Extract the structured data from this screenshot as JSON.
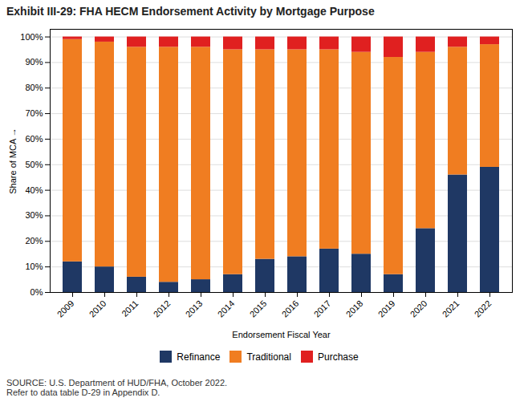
{
  "chart_data": {
    "type": "bar",
    "stacked": true,
    "title": "Exhibit III-29: FHA HECM Endorsement Activity by Mortgage Purpose",
    "xlabel": "Endorsement Fiscal Year",
    "ylabel": "Share of MCA",
    "caption": "SOURCE: U.S. Department of HUD/FHA, October 2022.\nRefer to data table D-29 in Appendix D.",
    "categories": [
      "2009",
      "2010",
      "2011",
      "2012",
      "2013",
      "2014",
      "2015",
      "2016",
      "2017",
      "2018",
      "2019",
      "2020",
      "2021",
      "2022"
    ],
    "series": [
      {
        "name": "Refinance",
        "color": "#1f3864",
        "values": [
          12,
          10,
          6,
          4,
          5,
          7,
          13,
          14,
          17,
          15,
          7,
          25,
          46,
          49
        ]
      },
      {
        "name": "Traditional",
        "color": "#f07d21",
        "values": [
          87,
          88,
          90,
          92,
          91,
          88,
          82,
          81,
          78,
          79,
          85,
          69,
          50,
          48
        ]
      },
      {
        "name": "Purchase",
        "color": "#e02020",
        "values": [
          1,
          2,
          4,
          4,
          4,
          5,
          5,
          5,
          5,
          6,
          8,
          6,
          4,
          3
        ]
      }
    ],
    "ylim": [
      0,
      103
    ],
    "yticks": [
      {
        "value": 0,
        "label": "0%"
      },
      {
        "value": 10,
        "label": "10%"
      },
      {
        "value": 20,
        "label": "20%"
      },
      {
        "value": 30,
        "label": "30%"
      },
      {
        "value": 40,
        "label": "40%"
      },
      {
        "value": 50,
        "label": "50%"
      },
      {
        "value": 60,
        "label": "60%"
      },
      {
        "value": 70,
        "label": "70%"
      },
      {
        "value": 80,
        "label": "80%"
      },
      {
        "value": 90,
        "label": "90%"
      },
      {
        "value": 100,
        "label": "100%"
      }
    ],
    "grid": true,
    "legend": "bottom"
  }
}
